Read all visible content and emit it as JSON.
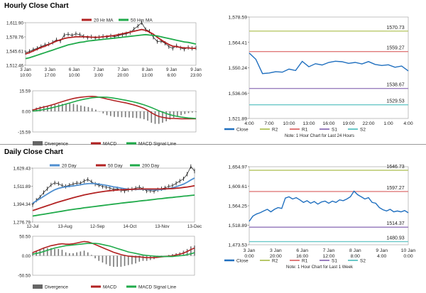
{
  "sections": {
    "hourly_title": "Hourly Close Chart",
    "daily_title": "Daily Close Chart"
  },
  "colors": {
    "red": "#b22222",
    "green": "#1faa4a",
    "blue": "#4f8fd0",
    "close_blue": "#1f6fbf",
    "macd_gray": "#777777",
    "r1": "#e07b7b",
    "r2": "#b8c86a",
    "s1": "#9a7fbf",
    "s2": "#6ac8c8"
  },
  "chart_data": [
    {
      "id": "hourly_price",
      "type": "line",
      "legend": [
        "20 Hr MA",
        "50 Hrs MA"
      ],
      "yticks": [
        "1,611.90",
        "1,578.76",
        "1,545.61",
        "1,512.46"
      ],
      "ylim": [
        1512.46,
        1611.9
      ],
      "xticks": [
        "3 Jan\n10:00",
        "3 Jan\n17:00",
        "6 Jan\n10:00",
        "7 Jan\n3:00",
        "7 Jan\n20:00",
        "8 Jan\n13:00",
        "9 Jan\n6:00",
        "9 Jan\n23:00"
      ],
      "series": [
        {
          "name": "Price",
          "values": [
            1542,
            1545,
            1549,
            1552,
            1556,
            1560,
            1562,
            1566,
            1572,
            1569,
            1583,
            1585,
            1582,
            1586,
            1584,
            1580,
            1577,
            1579,
            1576,
            1578,
            1580,
            1578,
            1581,
            1579,
            1582,
            1584,
            1586,
            1589,
            1597,
            1604,
            1612,
            1596,
            1592,
            1578,
            1568,
            1569,
            1564,
            1556,
            1552,
            1558,
            1553,
            1550,
            1554,
            1552,
            1553
          ]
        },
        {
          "name": "20 Hr MA",
          "values": [
            1539,
            1542,
            1546,
            1550,
            1554,
            1557,
            1561,
            1565,
            1569,
            1572,
            1575,
            1577,
            1578,
            1579,
            1579,
            1579,
            1579,
            1578,
            1578,
            1578,
            1579,
            1580,
            1581,
            1582,
            1584,
            1586,
            1588,
            1590,
            1592,
            1594,
            1596,
            1594,
            1590,
            1585,
            1578,
            1572,
            1566,
            1561,
            1557,
            1556,
            1554,
            1553,
            1553,
            1552,
            1552
          ]
        },
        {
          "name": "50 Hrs MA",
          "values": [
            1528,
            1530,
            1533,
            1536,
            1539,
            1542,
            1545,
            1548,
            1551,
            1554,
            1557,
            1560,
            1562,
            1564,
            1566,
            1567,
            1569,
            1570,
            1571,
            1572,
            1573,
            1574,
            1575,
            1576,
            1577,
            1578,
            1579,
            1580,
            1581,
            1582,
            1583,
            1584,
            1583,
            1582,
            1581,
            1579,
            1577,
            1575,
            1573,
            1571,
            1569,
            1567,
            1566,
            1564,
            1562
          ]
        }
      ]
    },
    {
      "id": "hourly_macd",
      "type": "bar",
      "legend": [
        "Divergence",
        "MACD",
        "MACD Signal Line"
      ],
      "yticks": [
        "15.59",
        "0.00",
        "-15.59"
      ],
      "ylim": [
        -15.59,
        15.59
      ],
      "series": [
        {
          "name": "MACD",
          "values": [
            1.0,
            1.8,
            2.6,
            3.3,
            4.0,
            4.8,
            5.6,
            6.5,
            7.4,
            8.3,
            9.1,
            9.8,
            10.3,
            10.7,
            11.0,
            11.3,
            11.4,
            11.2,
            10.7,
            10.1,
            9.4,
            8.8,
            8.1,
            7.6,
            7.0,
            6.5,
            5.8,
            5.1,
            4.3,
            3.4,
            2.3,
            0.8,
            -1.0,
            -2.6,
            -3.8,
            -4.5,
            -5.0,
            -5.3,
            -5.4,
            -5.5,
            -5.6,
            -5.6,
            -5.6,
            -5.6,
            -5.6
          ]
        },
        {
          "name": "MACD Signal Line",
          "values": [
            0.2,
            0.5,
            0.9,
            1.4,
            2.0,
            2.6,
            3.3,
            4.0,
            4.8,
            5.6,
            6.4,
            7.2,
            8.0,
            8.7,
            9.3,
            9.8,
            10.3,
            10.6,
            10.8,
            10.8,
            10.7,
            10.4,
            10.0,
            9.5,
            9.0,
            8.5,
            7.9,
            7.3,
            6.6,
            5.8,
            5.0,
            4.0,
            2.9,
            1.7,
            0.5,
            -0.6,
            -1.6,
            -2.5,
            -3.2,
            -3.8,
            -4.3,
            -4.7,
            -5.0,
            -5.2,
            -5.4
          ]
        }
      ]
    },
    {
      "id": "hourly_pivot",
      "type": "line",
      "xticks": [
        "4:00",
        "7:00",
        "10:00",
        "13:00",
        "16:00",
        "19:00",
        "22:00",
        "1:00",
        "4:00"
      ],
      "yticks": [
        "1,578.59",
        "1,564.41",
        "1,550.24",
        "1,536.06",
        "1,521.89"
      ],
      "ylim": [
        1521.89,
        1578.59
      ],
      "levels": {
        "R2": 1570.73,
        "R1": 1559.27,
        "S1": 1538.67,
        "S2": 1529.53
      },
      "level_labels": [
        "1570.73",
        "1559.27",
        "1538.67",
        "1529.53"
      ],
      "legend": [
        "Close",
        "R2",
        "R1",
        "S1",
        "S2"
      ],
      "note": "Note: 1 Hour Chart for Last 24 Hours",
      "series": [
        {
          "name": "Close",
          "values": [
            1558.5,
            1555,
            1547,
            1547.3,
            1548,
            1547.8,
            1549.5,
            1548.7,
            1553.8,
            1550.8,
            1552.5,
            1551.8,
            1553.2,
            1553.9,
            1553.6,
            1552.7,
            1553.2,
            1552.4,
            1553.7,
            1552.1,
            1551.5,
            1551.9,
            1550.5,
            1551.2,
            1548.5
          ]
        }
      ]
    },
    {
      "id": "daily_price",
      "type": "line",
      "legend": [
        "20 Day",
        "50 Day",
        "200 Day"
      ],
      "yticks": [
        "1,629.43",
        "1,511.89",
        "1,394.34",
        "1,276.79"
      ],
      "ylim": [
        1276.79,
        1629.43
      ],
      "xticks": [
        "12-Jul",
        "13-Aug",
        "12-Sep",
        "14-Oct",
        "13-Nov",
        "13-Dec"
      ],
      "series": [
        {
          "name": "Price",
          "values": [
            1390,
            1420,
            1440,
            1470,
            1495,
            1520,
            1533,
            1528,
            1515,
            1510,
            1518,
            1525,
            1532,
            1530,
            1545,
            1555,
            1540,
            1525,
            1518,
            1510,
            1505,
            1500,
            1490,
            1495,
            1485,
            1480,
            1488,
            1492,
            1498,
            1505,
            1495,
            1480,
            1482,
            1478,
            1488,
            1495,
            1500,
            1510,
            1515,
            1530,
            1545,
            1560,
            1590,
            1640,
            1610
          ]
        },
        {
          "name": "20 Day",
          "values": [
            1400,
            1415,
            1430,
            1445,
            1460,
            1475,
            1488,
            1497,
            1503,
            1507,
            1510,
            1513,
            1517,
            1521,
            1525,
            1528,
            1529,
            1528,
            1525,
            1521,
            1517,
            1512,
            1507,
            1503,
            1499,
            1495,
            1492,
            1490,
            1490,
            1491,
            1491,
            1490,
            1489,
            1488,
            1488,
            1489,
            1492,
            1496,
            1501,
            1508,
            1516,
            1525,
            1537,
            1552,
            1565
          ]
        },
        {
          "name": "50 Day",
          "values": [
            1352,
            1360,
            1368,
            1376,
            1384,
            1392,
            1400,
            1408,
            1415,
            1422,
            1429,
            1436,
            1442,
            1448,
            1454,
            1459,
            1464,
            1468,
            1472,
            1476,
            1479,
            1482,
            1484,
            1486,
            1488,
            1489,
            1490,
            1491,
            1492,
            1493,
            1493,
            1493,
            1493,
            1493,
            1493,
            1493,
            1494,
            1495,
            1496,
            1498,
            1500,
            1503,
            1506,
            1510,
            1515
          ]
        },
        {
          "name": "200 Day",
          "values": [
            1316,
            1320,
            1324,
            1328,
            1332,
            1336,
            1340,
            1344,
            1348,
            1352,
            1356,
            1360,
            1363,
            1366,
            1370,
            1373,
            1376,
            1379,
            1382,
            1385,
            1388,
            1391,
            1394,
            1397,
            1400,
            1403,
            1406,
            1408,
            1411,
            1414,
            1417,
            1419,
            1422,
            1425,
            1428,
            1430,
            1433,
            1436,
            1438,
            1441,
            1443,
            1446,
            1448,
            1451,
            1453
          ]
        }
      ]
    },
    {
      "id": "daily_macd",
      "type": "bar",
      "legend": [
        "Divergence",
        "MACD",
        "MACD Signal Line"
      ],
      "yticks": [
        "50.50",
        "0.00",
        "-50.50"
      ],
      "ylim": [
        -50.5,
        50.5
      ],
      "series": [
        {
          "name": "MACD",
          "values": [
            8,
            12,
            16,
            20,
            23,
            26,
            28,
            30,
            31,
            30,
            30,
            31,
            33,
            35,
            37,
            36,
            33,
            29,
            25,
            21,
            17,
            13,
            9,
            6,
            3,
            1,
            -1,
            -2,
            -3,
            -3,
            -4,
            -5,
            -5,
            -5,
            -4,
            -3,
            -2,
            -1,
            0,
            2,
            4,
            7,
            11,
            16,
            20
          ]
        },
        {
          "name": "MACD Signal Line",
          "values": [
            4,
            6,
            8,
            11,
            14,
            17,
            20,
            22,
            24,
            26,
            27,
            28,
            29,
            30,
            31,
            32,
            32,
            32,
            31,
            29,
            27,
            25,
            22,
            19,
            16,
            13,
            10,
            8,
            6,
            4,
            2,
            1,
            0,
            -1,
            -2,
            -2,
            -2,
            -2,
            -2,
            -1,
            0,
            1,
            3,
            5,
            8
          ]
        }
      ]
    },
    {
      "id": "daily_pivot",
      "type": "line",
      "xticks": [
        "3 Jan\n0:00",
        "3 Jan\n20:00",
        "6 Jan\n16:00",
        "7 Jan\n12:00",
        "8 Jan\n8:00",
        "9 Jan\n4:00",
        "10 Jan\n0:00"
      ],
      "yticks": [
        "1,654.97",
        "1,609.61",
        "1,564.25",
        "1,518.89",
        "1,473.53"
      ],
      "ylim": [
        1473.53,
        1654.97
      ],
      "levels": {
        "R2": 1646.73,
        "R1": 1597.27,
        "S1": 1514.37,
        "S2": 1480.93
      },
      "level_labels": [
        "1646.73",
        "1597.27",
        "1514.37",
        "1480.93"
      ],
      "legend": [
        "Close",
        "R2",
        "R1",
        "S1",
        "S2"
      ],
      "note": "Note: 1 Hour Chart for Last 1 Week",
      "series": [
        {
          "name": "Close",
          "values": [
            1528,
            1540,
            1545,
            1548,
            1552,
            1556,
            1550,
            1556,
            1560,
            1558,
            1582,
            1585,
            1580,
            1583,
            1578,
            1572,
            1576,
            1570,
            1574,
            1568,
            1573,
            1575,
            1570,
            1575,
            1572,
            1578,
            1576,
            1580,
            1585,
            1598,
            1590,
            1585,
            1580,
            1583,
            1572,
            1570,
            1560,
            1555,
            1552,
            1556,
            1550,
            1552,
            1550,
            1553,
            1548
          ]
        }
      ]
    }
  ]
}
